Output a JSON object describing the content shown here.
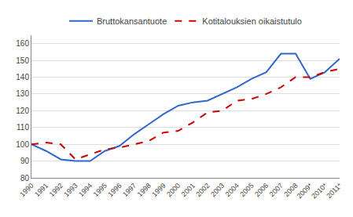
{
  "chart_data": {
    "type": "line",
    "categories": [
      "1990",
      "1991",
      "1992",
      "1993",
      "1994",
      "1995",
      "1996",
      "1997",
      "1998",
      "1999",
      "2000",
      "2001",
      "2002",
      "2003",
      "2004",
      "2005",
      "2006",
      "2007",
      "2008",
      "2009*",
      "2010*",
      "2011*"
    ],
    "series": [
      {
        "name": "Bruttokansantuote",
        "color": "#3366cc",
        "line_style": "solid",
        "values": [
          100,
          96,
          91,
          90,
          90,
          96,
          99,
          106,
          112,
          118,
          123,
          125,
          126,
          130,
          134,
          139,
          143,
          154,
          154,
          139,
          143,
          151
        ]
      },
      {
        "name": "Kotitalouksien oikaistutulo",
        "color": "#cc0000",
        "line_style": "dashed",
        "values": [
          100,
          101,
          100,
          91,
          94,
          97,
          98,
          100,
          102,
          107,
          108,
          113,
          119,
          120,
          126,
          127,
          130,
          134,
          140,
          140,
          143,
          145
        ]
      }
    ],
    "ylim": [
      80,
      165
    ],
    "yticks": [
      80,
      90,
      100,
      110,
      120,
      130,
      140,
      150,
      160
    ],
    "grid": true,
    "legend": "top"
  }
}
